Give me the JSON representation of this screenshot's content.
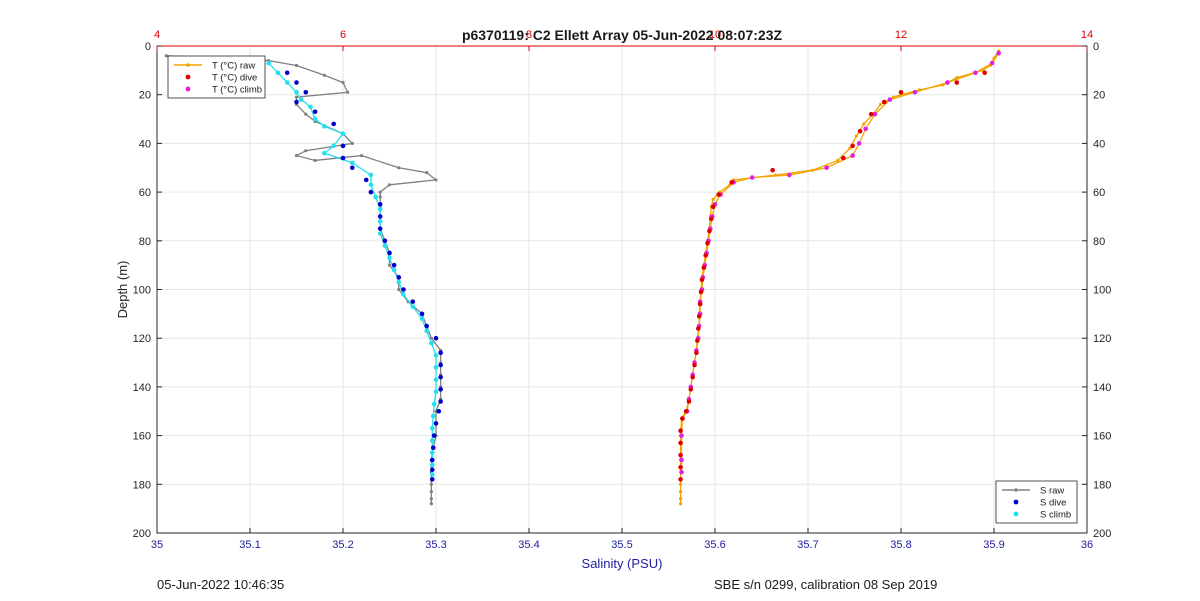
{
  "chart_data": {
    "type": "line",
    "title": "p6370119: C2 Ellett Array 05-Jun-2022 08:07:23Z",
    "xlabel": "Salinity (PSU)",
    "ylabel": "Depth (m)",
    "xlim": [
      35,
      36
    ],
    "x_top_lim": [
      4,
      14
    ],
    "ylim": [
      0,
      200
    ],
    "y_reversed": true,
    "grid": true,
    "x_ticks": [
      "35",
      "35.1",
      "35.2",
      "35.3",
      "35.4",
      "35.5",
      "35.6",
      "35.7",
      "35.8",
      "35.9",
      "36"
    ],
    "x_top_ticks": [
      "4",
      "6",
      "8",
      "10",
      "12",
      "14"
    ],
    "y_ticks": [
      "0",
      "20",
      "40",
      "60",
      "80",
      "100",
      "120",
      "140",
      "160",
      "180",
      "200"
    ],
    "legend_top_left": [
      "T (°C) raw",
      "T (°C) dive",
      "T (°C) climb"
    ],
    "legend_bottom_right": [
      "S raw",
      "S dive",
      "S climb"
    ],
    "colors": {
      "t_raw": "#f0a500",
      "t_dive": "#e00000",
      "t_climb": "#e020e0",
      "s_raw": "#808080",
      "s_dive": "#0000cc",
      "s_climb": "#22e0f0",
      "top_axis": "#dd0000",
      "bottom_axis": "#2020a0"
    },
    "series": [
      {
        "name": "T (°C) raw",
        "axis": "top",
        "points": [
          [
            13.05,
            2
          ],
          [
            13.0,
            5
          ],
          [
            12.96,
            8
          ],
          [
            12.88,
            10
          ],
          [
            12.6,
            13
          ],
          [
            12.45,
            16
          ],
          [
            12.2,
            18
          ],
          [
            12.0,
            20
          ],
          [
            11.92,
            21
          ],
          [
            11.78,
            24
          ],
          [
            11.7,
            28
          ],
          [
            11.6,
            32
          ],
          [
            11.52,
            37
          ],
          [
            11.45,
            42
          ],
          [
            11.32,
            47
          ],
          [
            11.05,
            51
          ],
          [
            10.65,
            53
          ],
          [
            10.2,
            55
          ],
          [
            10.16,
            57
          ],
          [
            10.05,
            60
          ],
          [
            9.98,
            63
          ],
          [
            9.96,
            66
          ],
          [
            9.95,
            70
          ],
          [
            9.94,
            75
          ],
          [
            9.92,
            80
          ],
          [
            9.9,
            85
          ],
          [
            9.88,
            90
          ],
          [
            9.86,
            95
          ],
          [
            9.85,
            100
          ],
          [
            9.84,
            105
          ],
          [
            9.83,
            110
          ],
          [
            9.83,
            115
          ],
          [
            9.81,
            120
          ],
          [
            9.8,
            125
          ],
          [
            9.78,
            130
          ],
          [
            9.76,
            135
          ],
          [
            9.74,
            140
          ],
          [
            9.72,
            145
          ],
          [
            9.69,
            150
          ],
          [
            9.64,
            153
          ],
          [
            9.63,
            160
          ],
          [
            9.63,
            170
          ],
          [
            9.63,
            180
          ],
          [
            9.63,
            183
          ],
          [
            9.63,
            186
          ],
          [
            9.63,
            188
          ]
        ]
      },
      {
        "name": "T (°C) climb",
        "axis": "top",
        "points": [
          [
            13.05,
            3
          ],
          [
            12.98,
            7
          ],
          [
            12.8,
            11
          ],
          [
            12.5,
            15
          ],
          [
            12.15,
            19
          ],
          [
            11.88,
            22
          ],
          [
            11.72,
            28
          ],
          [
            11.62,
            34
          ],
          [
            11.55,
            40
          ],
          [
            11.48,
            45
          ],
          [
            11.2,
            50
          ],
          [
            10.8,
            53
          ],
          [
            10.4,
            54
          ],
          [
            10.2,
            56
          ],
          [
            10.06,
            61
          ],
          [
            10.0,
            65
          ],
          [
            9.97,
            70
          ],
          [
            9.95,
            75
          ],
          [
            9.93,
            80
          ],
          [
            9.91,
            85
          ],
          [
            9.89,
            90
          ],
          [
            9.87,
            95
          ],
          [
            9.86,
            100
          ],
          [
            9.84,
            105
          ],
          [
            9.84,
            110
          ],
          [
            9.83,
            115
          ],
          [
            9.82,
            120
          ],
          [
            9.8,
            125
          ],
          [
            9.78,
            130
          ],
          [
            9.76,
            135
          ],
          [
            9.74,
            140
          ],
          [
            9.72,
            145
          ],
          [
            9.7,
            150
          ],
          [
            9.65,
            153
          ],
          [
            9.64,
            160
          ],
          [
            9.64,
            170
          ],
          [
            9.64,
            175
          ]
        ]
      },
      {
        "name": "T (°C) dive",
        "axis": "top",
        "points": [
          [
            12.9,
            11
          ],
          [
            12.6,
            15
          ],
          [
            12.0,
            19
          ],
          [
            11.82,
            23
          ],
          [
            11.68,
            28
          ],
          [
            11.56,
            35
          ],
          [
            11.48,
            41
          ],
          [
            11.38,
            46
          ],
          [
            10.62,
            51
          ],
          [
            10.18,
            56
          ],
          [
            10.04,
            61
          ],
          [
            9.98,
            66
          ],
          [
            9.96,
            71
          ],
          [
            9.94,
            76
          ],
          [
            9.92,
            81
          ],
          [
            9.9,
            86
          ],
          [
            9.88,
            91
          ],
          [
            9.86,
            96
          ],
          [
            9.85,
            101
          ],
          [
            9.84,
            106
          ],
          [
            9.83,
            111
          ],
          [
            9.82,
            116
          ],
          [
            9.81,
            121
          ],
          [
            9.8,
            126
          ],
          [
            9.78,
            131
          ],
          [
            9.76,
            136
          ],
          [
            9.74,
            141
          ],
          [
            9.72,
            146
          ],
          [
            9.69,
            150
          ],
          [
            9.65,
            153
          ],
          [
            9.63,
            158
          ],
          [
            9.63,
            163
          ],
          [
            9.63,
            168
          ],
          [
            9.63,
            173
          ],
          [
            9.63,
            178
          ]
        ]
      },
      {
        "name": "S raw",
        "axis": "bottom",
        "points": [
          [
            35.01,
            4
          ],
          [
            35.12,
            6
          ],
          [
            35.15,
            8
          ],
          [
            35.18,
            12
          ],
          [
            35.2,
            15
          ],
          [
            35.205,
            19
          ],
          [
            35.15,
            21
          ],
          [
            35.15,
            24
          ],
          [
            35.16,
            28
          ],
          [
            35.17,
            31
          ],
          [
            35.2,
            36
          ],
          [
            35.21,
            40
          ],
          [
            35.16,
            43
          ],
          [
            35.15,
            45
          ],
          [
            35.17,
            47
          ],
          [
            35.22,
            45
          ],
          [
            35.26,
            50
          ],
          [
            35.29,
            52
          ],
          [
            35.3,
            55
          ],
          [
            35.25,
            57
          ],
          [
            35.24,
            60
          ],
          [
            35.24,
            62
          ],
          [
            35.24,
            66
          ],
          [
            35.24,
            70
          ],
          [
            35.24,
            75
          ],
          [
            35.245,
            80
          ],
          [
            35.25,
            85
          ],
          [
            35.25,
            90
          ],
          [
            35.26,
            95
          ],
          [
            35.26,
            100
          ],
          [
            35.27,
            105
          ],
          [
            35.285,
            110
          ],
          [
            35.29,
            115
          ],
          [
            35.295,
            120
          ],
          [
            35.305,
            125
          ],
          [
            35.305,
            130
          ],
          [
            35.305,
            135
          ],
          [
            35.305,
            140
          ],
          [
            35.305,
            145
          ],
          [
            35.3,
            150
          ],
          [
            35.3,
            155
          ],
          [
            35.3,
            160
          ],
          [
            35.297,
            165
          ],
          [
            35.295,
            170
          ],
          [
            35.295,
            175
          ],
          [
            35.295,
            180
          ],
          [
            35.295,
            183
          ],
          [
            35.295,
            186
          ],
          [
            35.295,
            188
          ]
        ]
      },
      {
        "name": "S climb",
        "axis": "bottom",
        "points": [
          [
            35.12,
            7
          ],
          [
            35.13,
            11
          ],
          [
            35.14,
            15
          ],
          [
            35.15,
            19
          ],
          [
            35.155,
            22
          ],
          [
            35.165,
            25
          ],
          [
            35.17,
            30
          ],
          [
            35.18,
            33
          ],
          [
            35.2,
            36
          ],
          [
            35.19,
            41
          ],
          [
            35.18,
            44
          ],
          [
            35.21,
            48
          ],
          [
            35.23,
            53
          ],
          [
            35.23,
            57
          ],
          [
            35.235,
            62
          ],
          [
            35.24,
            67
          ],
          [
            35.24,
            72
          ],
          [
            35.24,
            77
          ],
          [
            35.245,
            82
          ],
          [
            35.25,
            87
          ],
          [
            35.255,
            92
          ],
          [
            35.26,
            97
          ],
          [
            35.265,
            102
          ],
          [
            35.275,
            107
          ],
          [
            35.285,
            112
          ],
          [
            35.29,
            117
          ],
          [
            35.295,
            122
          ],
          [
            35.3,
            127
          ],
          [
            35.3,
            132
          ],
          [
            35.3,
            137
          ],
          [
            35.3,
            142
          ],
          [
            35.298,
            147
          ],
          [
            35.297,
            152
          ],
          [
            35.296,
            157
          ],
          [
            35.296,
            162
          ],
          [
            35.296,
            167
          ],
          [
            35.296,
            172
          ],
          [
            35.296,
            176
          ]
        ]
      },
      {
        "name": "S dive",
        "axis": "bottom",
        "points": [
          [
            35.14,
            11
          ],
          [
            35.15,
            15
          ],
          [
            35.16,
            19
          ],
          [
            35.15,
            23
          ],
          [
            35.17,
            27
          ],
          [
            35.19,
            32
          ],
          [
            35.2,
            41
          ],
          [
            35.2,
            46
          ],
          [
            35.21,
            50
          ],
          [
            35.225,
            55
          ],
          [
            35.23,
            60
          ],
          [
            35.24,
            65
          ],
          [
            35.24,
            70
          ],
          [
            35.24,
            75
          ],
          [
            35.245,
            80
          ],
          [
            35.25,
            85
          ],
          [
            35.255,
            90
          ],
          [
            35.26,
            95
          ],
          [
            35.265,
            100
          ],
          [
            35.275,
            105
          ],
          [
            35.285,
            110
          ],
          [
            35.29,
            115
          ],
          [
            35.3,
            120
          ],
          [
            35.305,
            126
          ],
          [
            35.305,
            131
          ],
          [
            35.305,
            136
          ],
          [
            35.305,
            141
          ],
          [
            35.305,
            146
          ],
          [
            35.303,
            150
          ],
          [
            35.3,
            155
          ],
          [
            35.298,
            160
          ],
          [
            35.297,
            165
          ],
          [
            35.296,
            170
          ],
          [
            35.296,
            174
          ],
          [
            35.296,
            178
          ]
        ]
      }
    ]
  },
  "footer": {
    "left": "05-Jun-2022 10:46:35",
    "right": "SBE s/n 0299, calibration 08 Sep 2019"
  }
}
